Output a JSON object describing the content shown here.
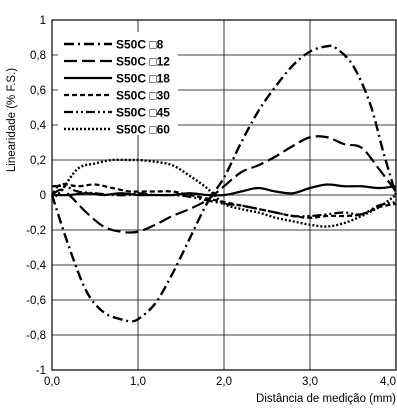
{
  "chart_data": {
    "type": "line",
    "title": "",
    "xlabel": "Distância de medição (mm)",
    "ylabel": "Linearidade (% F.S.)",
    "xlim": [
      0,
      4
    ],
    "ylim": [
      -1,
      1
    ],
    "grid": true,
    "legend_position": "top-left",
    "x_ticks": [
      "0,0",
      "1,0",
      "2,0",
      "3,0",
      "4,0"
    ],
    "y_ticks": [
      "1",
      "0,8",
      "0,6",
      "0,4",
      "0,2",
      "0",
      "-0,2",
      "-0,4",
      "-0,6",
      "-0,8",
      "-1"
    ],
    "series": [
      {
        "name": "S50C □8",
        "line_style": "dash-dot",
        "x": [
          0,
          0.2,
          0.4,
          0.6,
          0.8,
          0.9,
          1.0,
          1.2,
          1.4,
          1.6,
          1.8,
          2.0,
          2.2,
          2.4,
          2.6,
          2.8,
          3.0,
          3.2,
          3.3,
          3.5,
          3.7,
          3.85,
          4.0
        ],
        "y": [
          0,
          -0.3,
          -0.55,
          -0.67,
          -0.71,
          -0.72,
          -0.71,
          -0.62,
          -0.45,
          -0.25,
          -0.05,
          0.1,
          0.3,
          0.48,
          0.62,
          0.74,
          0.82,
          0.85,
          0.84,
          0.74,
          0.52,
          0.25,
          0.0
        ]
      },
      {
        "name": "S50C □12",
        "line_style": "long-dash",
        "x": [
          0,
          0.1,
          0.2,
          0.4,
          0.6,
          0.8,
          1.0,
          1.2,
          1.4,
          1.6,
          1.8,
          2.0,
          2.2,
          2.4,
          2.6,
          2.8,
          3.0,
          3.2,
          3.4,
          3.6,
          3.8,
          4.0
        ],
        "y": [
          0,
          0.03,
          0.0,
          -0.1,
          -0.18,
          -0.21,
          -0.21,
          -0.17,
          -0.12,
          -0.08,
          -0.03,
          0.05,
          0.13,
          0.17,
          0.22,
          0.28,
          0.33,
          0.33,
          0.29,
          0.27,
          0.15,
          0.02
        ]
      },
      {
        "name": "S50C □18",
        "line_style": "solid",
        "x": [
          0,
          0.2,
          0.4,
          0.6,
          0.8,
          1.0,
          1.2,
          1.4,
          1.6,
          1.8,
          2.0,
          2.2,
          2.4,
          2.6,
          2.8,
          3.0,
          3.2,
          3.4,
          3.6,
          3.8,
          4.0
        ],
        "y": [
          0,
          0.0,
          0.01,
          0.0,
          0.01,
          0.0,
          0.0,
          0.0,
          0.01,
          0.0,
          0.0,
          0.02,
          0.04,
          0.02,
          0.01,
          0.04,
          0.06,
          0.05,
          0.05,
          0.04,
          0.05
        ]
      },
      {
        "name": "S50C □30",
        "line_style": "short-dash",
        "x": [
          0,
          0.1,
          0.3,
          0.5,
          0.7,
          0.9,
          1.0,
          1.2,
          1.4,
          1.6,
          1.8,
          2.0,
          2.2,
          2.4,
          2.6,
          2.8,
          3.0,
          3.2,
          3.4,
          3.6,
          3.8,
          4.0
        ],
        "y": [
          0,
          0.06,
          0.05,
          0.06,
          0.04,
          0.02,
          0.02,
          0.02,
          0.02,
          0.0,
          -0.02,
          -0.04,
          -0.06,
          -0.08,
          -0.1,
          -0.12,
          -0.13,
          -0.12,
          -0.12,
          -0.11,
          -0.07,
          -0.05
        ]
      },
      {
        "name": "S50C □45",
        "line_style": "dash-dot-dot",
        "x": [
          0,
          0.15,
          0.3,
          0.5,
          0.7,
          0.9,
          1.0,
          1.2,
          1.4,
          1.6,
          1.8,
          2.0,
          2.2,
          2.4,
          2.6,
          2.8,
          3.0,
          3.2,
          3.4,
          3.6,
          3.8,
          4.0
        ],
        "y": [
          0.05,
          0.05,
          0.02,
          0.01,
          0.0,
          0.0,
          0.01,
          0.0,
          0.0,
          -0.01,
          -0.03,
          -0.05,
          -0.06,
          -0.08,
          -0.1,
          -0.12,
          -0.12,
          -0.11,
          -0.1,
          -0.11,
          -0.06,
          -0.04
        ]
      },
      {
        "name": "S50C □60",
        "line_style": "dotted",
        "x": [
          0,
          0.1,
          0.3,
          0.5,
          0.7,
          0.9,
          1.0,
          1.2,
          1.4,
          1.6,
          1.8,
          2.0,
          2.2,
          2.4,
          2.6,
          2.8,
          3.0,
          3.2,
          3.4,
          3.6,
          3.8,
          4.0
        ],
        "y": [
          -0.02,
          0.02,
          0.15,
          0.18,
          0.2,
          0.2,
          0.2,
          0.19,
          0.17,
          0.11,
          0.04,
          -0.05,
          -0.08,
          -0.1,
          -0.13,
          -0.15,
          -0.17,
          -0.18,
          -0.16,
          -0.12,
          -0.07,
          0.0
        ]
      }
    ]
  }
}
